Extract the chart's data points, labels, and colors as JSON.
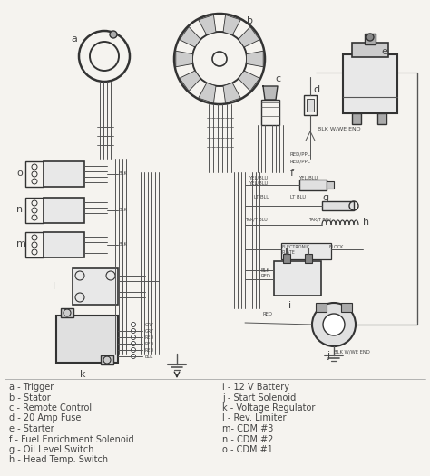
{
  "bg_color": "#f5f3ef",
  "line_color": "#555555",
  "dark_color": "#333333",
  "text_color": "#444444",
  "legend_fontsize": 7.0,
  "label_fontsize": 7.5,
  "wire_lw": 0.9,
  "fig_width": 4.74,
  "fig_height": 5.25,
  "dpi": 100,
  "legend_left": [
    "a - Trigger",
    "b - Stator",
    "c - Remote Control",
    "d - 20 Amp Fuse",
    "e - Starter",
    "f - Fuel Enrichment Solenoid",
    "g - Oil Level Switch",
    "h - Head Temp. Switch"
  ],
  "legend_right": [
    "i - 12 V Battery",
    "j - Start Solenoid",
    "k - Voltage Regulator",
    "l - Rev. Limiter",
    "m- CDM #3",
    "n - CDM #2",
    "o - CDM #1"
  ]
}
